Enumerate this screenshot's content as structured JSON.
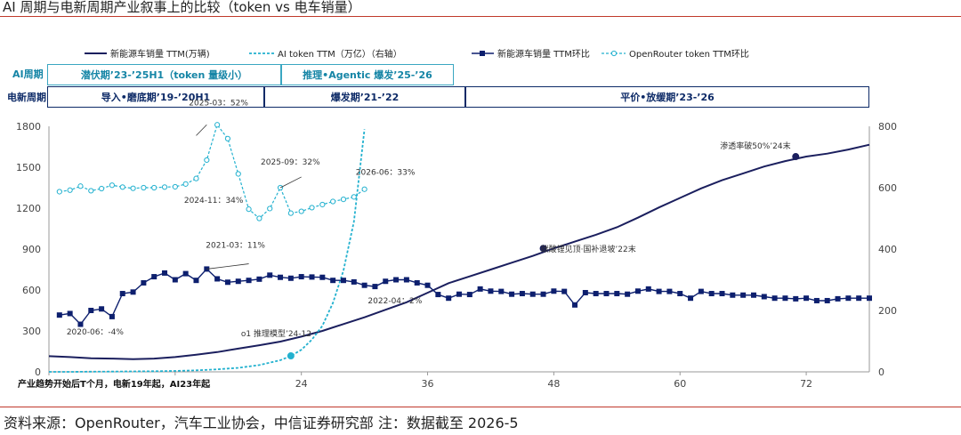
{
  "title": "AI 周期与电新周期产业叙事上的比较（token vs  电车销量）",
  "source": "资料来源：OpenRouter，汽车工业协会，中信证券研究部   注：数据截至 2026-5",
  "axis_note": "产业趋势开始后T个月，电新19年起，AI23年起",
  "phase_rows": {
    "ai_label": "AI周期",
    "ev_label": "电新周期",
    "ai": [
      "潜伏期’23-’25H1（token 量级小）",
      "推理•Agentic 爆发’25-’26"
    ],
    "ev": [
      "导入•磨底期’19-’20H1",
      "爆发期’21-’22",
      "平价•放缓期’23-’26"
    ]
  },
  "colors": {
    "ev_sales": "#1b1f5e",
    "ai_token": "#23b1cf",
    "ev_mom": "#0d1f6e",
    "token_mom": "#23b1cf",
    "accent_rule": "#c0392b"
  },
  "chart_data": {
    "type": "line",
    "xlabel": "产业趋势开始后T个月，电新19年起，AI23年起",
    "xlim": [
      0,
      78
    ],
    "x_ticks": [
      0,
      12,
      24,
      36,
      48,
      60,
      72
    ],
    "x_tick_labels": [
      "",
      "",
      "24",
      "36",
      "48",
      "60",
      "72"
    ],
    "ylim_left": [
      0,
      1800
    ],
    "y_ticks_left": [
      0,
      300,
      600,
      900,
      1200,
      1500,
      1800
    ],
    "ylim_right": [
      0,
      800
    ],
    "y_ticks_right": [
      0,
      200,
      400,
      600,
      800
    ],
    "legend_position": "top",
    "series": [
      {
        "name": "新能源车销量 TTM(万辆)",
        "axis": "left",
        "style": "solid",
        "x": [
          0,
          2,
          4,
          6,
          8,
          10,
          12,
          14,
          16,
          18,
          20,
          22,
          24,
          26,
          28,
          30,
          32,
          34,
          36,
          38,
          40,
          42,
          44,
          46,
          48,
          50,
          52,
          54,
          56,
          58,
          60,
          62,
          64,
          66,
          68,
          70,
          72,
          74,
          76,
          78
        ],
        "y": [
          115,
          108,
          100,
          97,
          93,
          97,
          108,
          125,
          145,
          170,
          195,
          222,
          258,
          300,
          350,
          400,
          455,
          510,
          580,
          650,
          700,
          750,
          800,
          850,
          905,
          955,
          1005,
          1060,
          1130,
          1205,
          1275,
          1345,
          1405,
          1455,
          1505,
          1545,
          1578,
          1600,
          1630,
          1665
        ]
      },
      {
        "name": "AI token TTM（万亿）（右轴）",
        "axis": "right",
        "style": "dashed",
        "x": [
          0,
          2,
          4,
          6,
          8,
          10,
          12,
          14,
          16,
          18,
          20,
          22,
          23,
          24,
          25,
          26,
          27,
          28,
          29,
          30
        ],
        "y": [
          0,
          0,
          0.5,
          1,
          1.5,
          2,
          3,
          5,
          8,
          13,
          22,
          38,
          52,
          72,
          105,
          150,
          225,
          330,
          490,
          790
        ]
      },
      {
        "name": "新能源车销量 TTM环比",
        "axis": "right",
        "style": "solid-marker",
        "x": [
          1,
          2,
          3,
          4,
          5,
          6,
          7,
          8,
          9,
          10,
          11,
          12,
          13,
          14,
          15,
          16,
          17,
          18,
          19,
          20,
          21,
          22,
          23,
          24,
          25,
          26,
          27,
          28,
          29,
          30,
          31,
          32,
          33,
          34,
          35,
          36,
          37,
          38,
          39,
          40,
          41,
          42,
          43,
          44,
          45,
          46,
          47,
          48,
          49,
          50,
          51,
          52,
          53,
          54,
          55,
          56,
          57,
          58,
          59,
          60,
          61,
          62,
          63,
          64,
          65,
          66,
          67,
          68,
          69,
          70,
          71,
          72,
          73,
          74,
          75,
          76,
          77,
          78
        ],
        "y": [
          185,
          190,
          155,
          200,
          205,
          180,
          255,
          260,
          290,
          310,
          322,
          300,
          320,
          298,
          335,
          303,
          292,
          295,
          298,
          302,
          315,
          308,
          305,
          310,
          309,
          308,
          298,
          298,
          293,
          282,
          278,
          295,
          300,
          300,
          290,
          282,
          252,
          240,
          253,
          252,
          270,
          263,
          262,
          253,
          255,
          253,
          253,
          263,
          262,
          218,
          258,
          255,
          255,
          255,
          253,
          263,
          270,
          262,
          262,
          255,
          240,
          262,
          255,
          255,
          250,
          250,
          250,
          245,
          240,
          240,
          238,
          240,
          232,
          232,
          238,
          240,
          240,
          240
        ]
      },
      {
        "name": "OpenRouter token TTM环比",
        "axis": "right",
        "style": "dashed-hollow-marker",
        "x": [
          1,
          2,
          3,
          4,
          5,
          6,
          7,
          8,
          9,
          10,
          11,
          12,
          13,
          14,
          15,
          16,
          17,
          18,
          19,
          20,
          21,
          22,
          23,
          24,
          25,
          26,
          27,
          28,
          29,
          30
        ],
        "y": [
          587,
          592,
          605,
          590,
          597,
          608,
          602,
          598,
          600,
          600,
          602,
          603,
          612,
          630,
          690,
          805,
          760,
          645,
          530,
          500,
          532,
          600,
          517,
          523,
          535,
          545,
          555,
          562,
          570,
          595
        ]
      }
    ],
    "annotations": [
      {
        "text": "2025-03：52%",
        "x": 15,
        "y": 805,
        "axis": "right"
      },
      {
        "text": "2025-09：32%",
        "x": 22,
        "y": 600,
        "axis": "right"
      },
      {
        "text": "2026-06：33%",
        "x": 29,
        "y": 595,
        "axis": "right"
      },
      {
        "text": "2024-11：34%",
        "x": 12,
        "y": 603,
        "axis": "right"
      },
      {
        "text": "2021-03：11%",
        "x": 15,
        "y": 335,
        "axis": "right"
      },
      {
        "text": "2020-06：-4%",
        "x": 1,
        "y": 185,
        "axis": "right"
      },
      {
        "text": "2022-04：2%",
        "x": 31,
        "y": 278,
        "axis": "right"
      },
      {
        "text": "o1 推理模型’24-12",
        "x": 23,
        "y": 52,
        "axis": "right"
      },
      {
        "text": "碳酸锂见顶·国补退坡’22末",
        "x": 47,
        "y": 905,
        "axis": "left"
      },
      {
        "text": "渗透率破50%’24末",
        "x": 71,
        "y": 1578,
        "axis": "left"
      }
    ]
  }
}
